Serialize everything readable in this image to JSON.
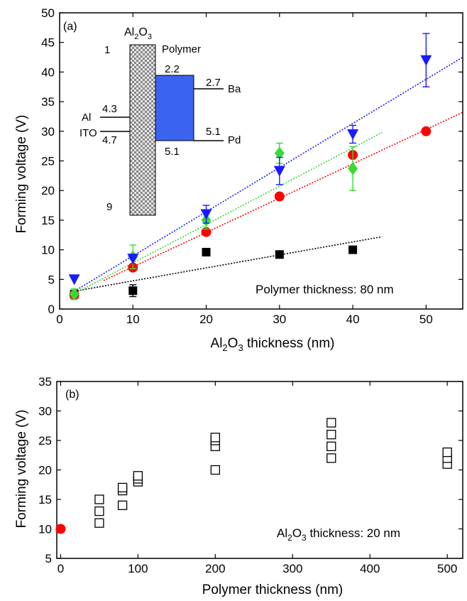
{
  "chart_data": [
    {
      "panel": "(a)",
      "type": "scatter",
      "xlabel": "Al2O3 thickness (nm)",
      "ylabel": "Forming voltage (V)",
      "xlim": [
        0,
        55
      ],
      "ylim": [
        0,
        50
      ],
      "xticks": [
        0,
        10,
        20,
        30,
        40,
        50
      ],
      "yticks": [
        0,
        5,
        10,
        15,
        20,
        25,
        30,
        35,
        40,
        45,
        50
      ],
      "annotation": "Polymer thickness: 80 nm",
      "series": [
        {
          "marker": "square",
          "color": "#000000",
          "points": [
            {
              "x": 2,
              "y": 2.5
            },
            {
              "x": 10,
              "y": 3.1,
              "err": 1.0
            },
            {
              "x": 20,
              "y": 9.6,
              "err": 0.6
            },
            {
              "x": 30,
              "y": 9.2
            },
            {
              "x": 40,
              "y": 10
            }
          ],
          "fit": [
            [
              2,
              3.0
            ],
            [
              44,
              12.2
            ]
          ]
        },
        {
          "marker": "circle",
          "color": "#ff0000",
          "points": [
            {
              "x": 2,
              "y": 2.4
            },
            {
              "x": 10,
              "y": 7.0
            },
            {
              "x": 20,
              "y": 13.0
            },
            {
              "x": 30,
              "y": 19.0
            },
            {
              "x": 40,
              "y": 26.0
            },
            {
              "x": 50,
              "y": 30.0
            }
          ],
          "fit": [
            [
              6,
              4.8
            ],
            [
              55,
              33.2
            ]
          ]
        },
        {
          "marker": "diamond",
          "color": "#33dd33",
          "points": [
            {
              "x": 2,
              "y": 2.5,
              "err": 0.9
            },
            {
              "x": 10,
              "y": 8.8,
              "err": 2.0
            },
            {
              "x": 20,
              "y": 15.0,
              "err": 1.5
            },
            {
              "x": 30,
              "y": 26.3,
              "err": 1.7
            },
            {
              "x": 40,
              "y": 23.7,
              "err": 3.7
            }
          ],
          "fit": [
            [
              2,
              2.6
            ],
            [
              44,
              29.8
            ]
          ]
        },
        {
          "marker": "triangle-down",
          "color": "#1a1aff",
          "points": [
            {
              "x": 2,
              "y": 5.0
            },
            {
              "x": 10,
              "y": 8.5
            },
            {
              "x": 20,
              "y": 16.0,
              "err": 1.5
            },
            {
              "x": 30,
              "y": 23.3,
              "err": 2.3
            },
            {
              "x": 40,
              "y": 29.5,
              "err": 1.5
            },
            {
              "x": 50,
              "y": 42.0,
              "err": 4.5
            }
          ],
          "fit": [
            [
              2,
              3.0
            ],
            [
              55,
              42.5
            ]
          ]
        }
      ],
      "inset": {
        "oxide_label": "Al2O3",
        "polymer_label": "Polymer",
        "level_labels": [
          "1",
          "2.2",
          "2.7",
          "4.3",
          "4.7",
          "5.1",
          "5.1",
          "9"
        ],
        "electrode_labels": [
          "Al",
          "ITO",
          "Ba",
          "Pd"
        ],
        "colors": {
          "polymer": "#3a64f0",
          "oxide_dark": "#888888",
          "oxide_light": "#e6e6e6"
        }
      }
    },
    {
      "panel": "(b)",
      "type": "scatter",
      "xlabel": "Polymer thickness (nm)",
      "ylabel": "Forming voltage (V)",
      "xlim": [
        -5,
        520
      ],
      "ylim": [
        5,
        35
      ],
      "xticks": [
        0,
        100,
        200,
        300,
        400,
        500
      ],
      "yticks": [
        5,
        10,
        15,
        20,
        25,
        30,
        35
      ],
      "annotation": "Al2O3 thickness: 20 nm",
      "series": [
        {
          "marker": "open-square",
          "color": "#000000",
          "points": [
            {
              "x": 50,
              "y": 11
            },
            {
              "x": 50,
              "y": 13
            },
            {
              "x": 50,
              "y": 15
            },
            {
              "x": 80,
              "y": 14
            },
            {
              "x": 80,
              "y": 16.5
            },
            {
              "x": 80,
              "y": 17
            },
            {
              "x": 100,
              "y": 18
            },
            {
              "x": 100,
              "y": 18.5
            },
            {
              "x": 100,
              "y": 19
            },
            {
              "x": 200,
              "y": 20
            },
            {
              "x": 200,
              "y": 24
            },
            {
              "x": 200,
              "y": 25
            },
            {
              "x": 200,
              "y": 25.5
            },
            {
              "x": 350,
              "y": 22
            },
            {
              "x": 350,
              "y": 24
            },
            {
              "x": 350,
              "y": 26
            },
            {
              "x": 350,
              "y": 28
            },
            {
              "x": 500,
              "y": 21
            },
            {
              "x": 500,
              "y": 22
            },
            {
              "x": 500,
              "y": 23
            }
          ]
        },
        {
          "marker": "circle",
          "color": "#ff0000",
          "points": [
            {
              "x": 0,
              "y": 10
            }
          ]
        }
      ]
    }
  ]
}
